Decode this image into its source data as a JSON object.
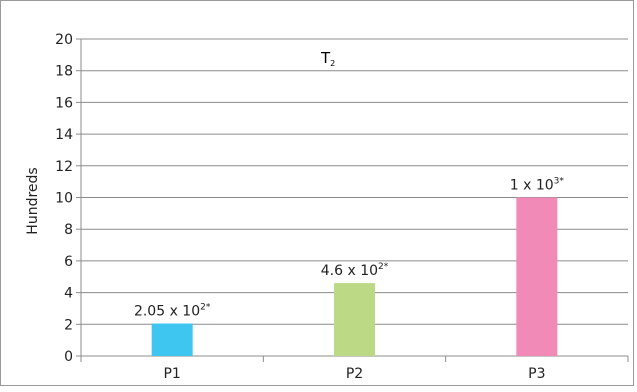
{
  "chart_data": {
    "type": "bar",
    "title_main": "T",
    "title_sub": "2",
    "ylabel": "Hundreds",
    "xlabel": "",
    "ylim": [
      0,
      20
    ],
    "yticks": [
      0,
      2,
      4,
      6,
      8,
      10,
      12,
      14,
      16,
      18,
      20
    ],
    "grid": true,
    "categories": [
      "P1",
      "P2",
      "P3"
    ],
    "values": [
      2.05,
      4.6,
      10
    ],
    "colors": [
      "#3ec6f0",
      "#bcd985",
      "#f28ab8"
    ],
    "data_labels": [
      {
        "base": "2.05 x 10",
        "exp": "2*"
      },
      {
        "base": "4.6 x 10",
        "exp": "2*"
      },
      {
        "base": "1 x 10",
        "exp": "3*"
      }
    ]
  }
}
